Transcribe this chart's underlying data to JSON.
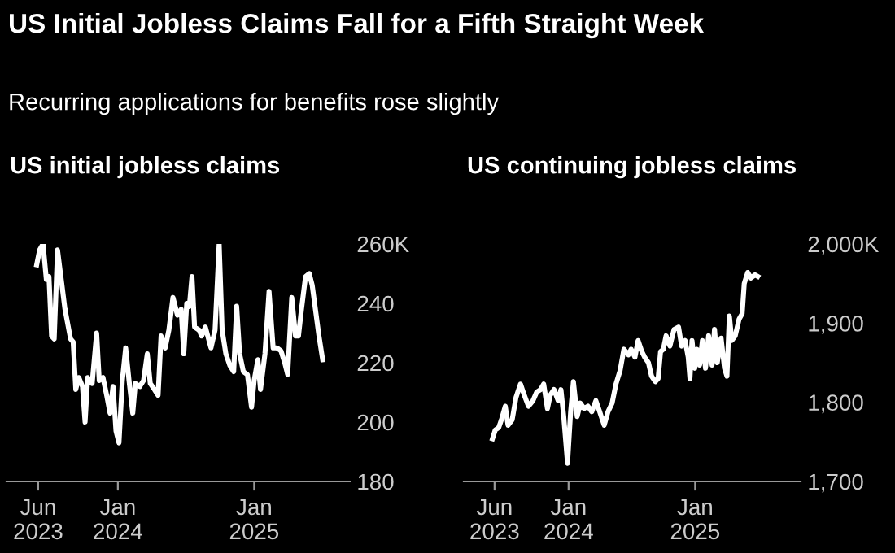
{
  "chart_data": [
    {
      "type": "other",
      "title": "US Initial Jobless Claims Fall for a Fifth Straight Week",
      "subtitle": "Recurring applications for benefits rose slightly"
    },
    {
      "type": "line",
      "title": "US initial jobless claims",
      "xlim": [
        "2023-03-08",
        "2025-09-15"
      ],
      "ylim": [
        180,
        260
      ],
      "xticks": [
        {
          "value": "2023-06-01",
          "label": "Jun\n2023"
        },
        {
          "value": "2024-01-01",
          "label": "Jan\n2024"
        },
        {
          "value": "2025-01-01",
          "label": "Jan\n2025"
        }
      ],
      "yticks": [
        180,
        200,
        220,
        240,
        {
          "value": 260,
          "label": "260K"
        }
      ],
      "line_style": "solid",
      "marker": "none",
      "series": [
        {
          "color": "#ffffff",
          "x": [
            "2023-05-28",
            "2023-06-05",
            "2023-06-14",
            "2023-06-23",
            "2023-06-30",
            "2023-07-07",
            "2023-07-14",
            "2023-07-23",
            "2023-08-01",
            "2023-08-12",
            "2023-08-27",
            "2023-09-03",
            "2023-09-10",
            "2023-09-18",
            "2023-09-28",
            "2023-10-05",
            "2023-10-12",
            "2023-10-24",
            "2023-11-05",
            "2023-11-12",
            "2023-11-22",
            "2023-12-02",
            "2023-12-11",
            "2023-12-19",
            "2023-12-27",
            "2024-01-04",
            "2024-01-13",
            "2024-01-22",
            "2024-01-31",
            "2024-02-10",
            "2024-02-17",
            "2024-02-29",
            "2024-03-10",
            "2024-03-20",
            "2024-03-28",
            "2024-04-08",
            "2024-04-18",
            "2024-04-26",
            "2024-05-07",
            "2024-05-17",
            "2024-05-28",
            "2024-06-09",
            "2024-06-19",
            "2024-06-26",
            "2024-07-04",
            "2024-07-11",
            "2024-07-18",
            "2024-07-25",
            "2024-08-06",
            "2024-08-13",
            "2024-08-23",
            "2024-09-07",
            "2024-09-18",
            "2024-09-29",
            "2024-10-07",
            "2024-10-17",
            "2024-10-28",
            "2024-11-07",
            "2024-11-15",
            "2024-11-23",
            "2024-12-03",
            "2024-12-14",
            "2024-12-25",
            "2025-01-01",
            "2025-01-11",
            "2025-01-18",
            "2025-01-30",
            "2025-02-10",
            "2025-02-21",
            "2025-03-03",
            "2025-03-14",
            "2025-03-24",
            "2025-04-01",
            "2025-04-12",
            "2025-04-22",
            "2025-04-30",
            "2025-05-08",
            "2025-05-19",
            "2025-05-29",
            "2025-06-06",
            "2025-06-24",
            "2025-07-04"
          ],
          "values": [
            253,
            258,
            260,
            248,
            249,
            229,
            228,
            258,
            249,
            238,
            228,
            227,
            211,
            215,
            212,
            200,
            215,
            213,
            230,
            214,
            215,
            209,
            203,
            212,
            197,
            193,
            214,
            225,
            214,
            203,
            213,
            212,
            214,
            223,
            213,
            211,
            209,
            229,
            225,
            231,
            242,
            236,
            238,
            223,
            240,
            239,
            249,
            232,
            231,
            229,
            232,
            225,
            231,
            260,
            231,
            223,
            219,
            217,
            239,
            223,
            217,
            216,
            205,
            214,
            221,
            211,
            223,
            244,
            225,
            225,
            224,
            220,
            216,
            242,
            229,
            229,
            238,
            249,
            250,
            246,
            229,
            221
          ]
        }
      ]
    },
    {
      "type": "line",
      "title": "US continuing jobless claims",
      "xlim": [
        "2023-03-04",
        "2025-11-02"
      ],
      "ylim": [
        1700,
        2000
      ],
      "xticks": [
        {
          "value": "2023-06-01",
          "label": "Jun\n2023"
        },
        {
          "value": "2024-01-01",
          "label": "Jan\n2024"
        },
        {
          "value": "2025-01-01",
          "label": "Jan\n2025"
        }
      ],
      "yticks": [
        {
          "value": 1700,
          "label": "1,700"
        },
        {
          "value": 1800,
          "label": "1,800"
        },
        {
          "value": 1900,
          "label": "1,900"
        },
        {
          "value": 2000,
          "label": "2,000K"
        }
      ],
      "line_style": "solid",
      "marker": "none",
      "series": [
        {
          "color": "#ffffff",
          "x": [
            "2023-05-26",
            "2023-06-03",
            "2023-06-13",
            "2023-06-21",
            "2023-07-02",
            "2023-07-10",
            "2023-07-22",
            "2023-08-02",
            "2023-08-15",
            "2023-08-26",
            "2023-09-07",
            "2023-09-20",
            "2023-10-01",
            "2023-10-12",
            "2023-10-21",
            "2023-11-01",
            "2023-11-09",
            "2023-11-20",
            "2023-12-02",
            "2023-12-10",
            "2023-12-18",
            "2023-12-29",
            "2024-01-07",
            "2024-01-15",
            "2024-01-26",
            "2024-02-04",
            "2024-02-15",
            "2024-02-26",
            "2024-03-08",
            "2024-03-20",
            "2024-03-31",
            "2024-04-13",
            "2024-04-24",
            "2024-05-06",
            "2024-05-17",
            "2024-05-29",
            "2024-06-09",
            "2024-06-22",
            "2024-06-30",
            "2024-07-11",
            "2024-07-20",
            "2024-07-31",
            "2024-08-08",
            "2024-08-19",
            "2024-08-28",
            "2024-09-08",
            "2024-09-16",
            "2024-09-23",
            "2024-10-01",
            "2024-10-09",
            "2024-10-20",
            "2024-11-01",
            "2024-11-14",
            "2024-11-23",
            "2024-12-03",
            "2024-12-12",
            "2024-12-17",
            "2024-12-23",
            "2024-12-31",
            "2025-01-06",
            "2025-01-14",
            "2025-01-22",
            "2025-01-31",
            "2025-02-09",
            "2025-02-19",
            "2025-02-26",
            "2025-03-06",
            "2025-03-17",
            "2025-03-27",
            "2025-04-03",
            "2025-04-10",
            "2025-04-17",
            "2025-04-27",
            "2025-05-08",
            "2025-05-17",
            "2025-05-23",
            "2025-06-02",
            "2025-06-11",
            "2025-06-23",
            "2025-07-01"
          ],
          "values": [
            1754,
            1765,
            1768,
            1778,
            1795,
            1771,
            1778,
            1806,
            1823,
            1809,
            1795,
            1802,
            1813,
            1816,
            1823,
            1792,
            1809,
            1816,
            1802,
            1816,
            1782,
            1723,
            1788,
            1826,
            1782,
            1799,
            1792,
            1795,
            1788,
            1802,
            1788,
            1771,
            1788,
            1799,
            1823,
            1840,
            1867,
            1860,
            1867,
            1857,
            1878,
            1864,
            1857,
            1850,
            1833,
            1826,
            1830,
            1864,
            1867,
            1884,
            1871,
            1892,
            1895,
            1871,
            1878,
            1857,
            1830,
            1878,
            1843,
            1867,
            1847,
            1878,
            1843,
            1884,
            1847,
            1892,
            1850,
            1881,
            1843,
            1833,
            1909,
            1878,
            1884,
            1905,
            1912,
            1950,
            1964,
            1957,
            1961,
            1959
          ]
        }
      ]
    }
  ]
}
